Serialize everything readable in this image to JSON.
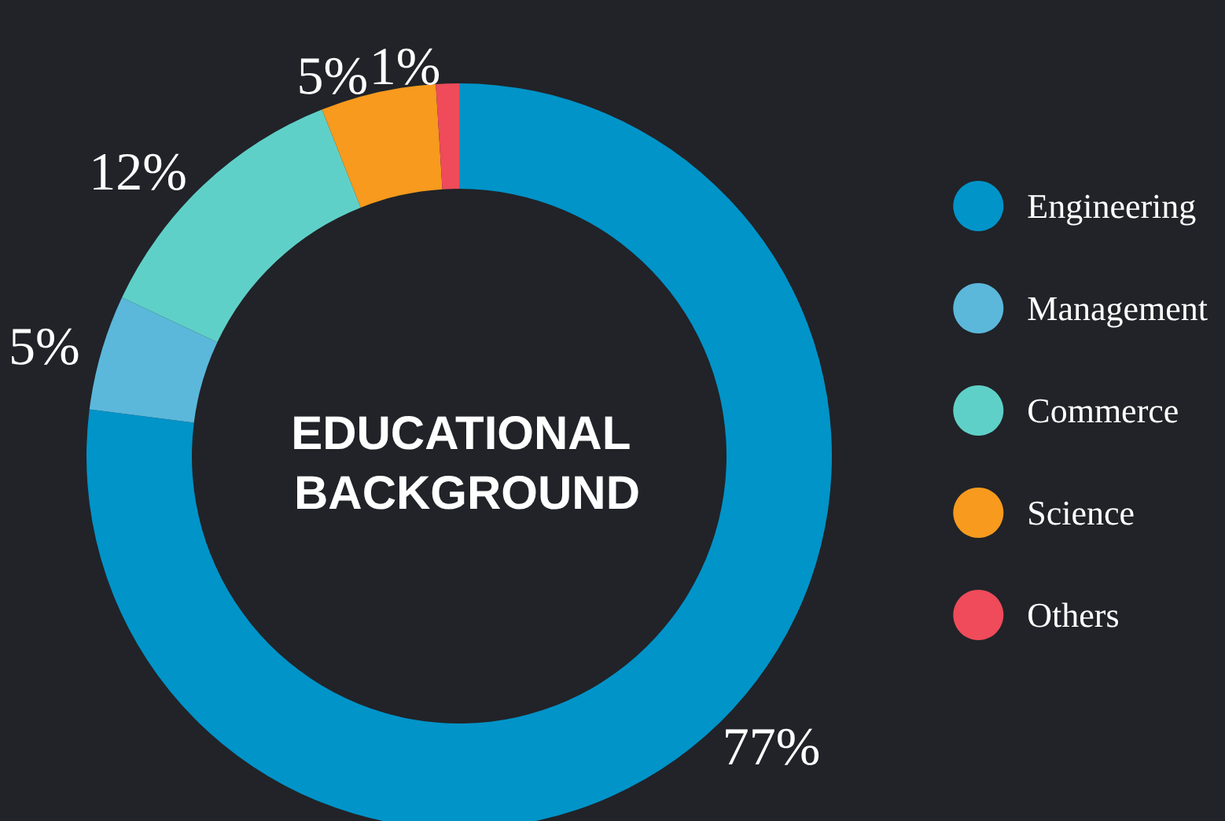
{
  "chart_data": {
    "type": "donut",
    "title": "EDUCATIONAL BACKGROUND",
    "categories": [
      "Engineering",
      "Management",
      "Commerce",
      "Science",
      "Others"
    ],
    "values": [
      77,
      5,
      12,
      5,
      1
    ],
    "colors": [
      "#0094c9",
      "#5bb8db",
      "#5fd0c8",
      "#f79a1e",
      "#ef4b5a"
    ],
    "value_labels": [
      "77%",
      "5%",
      "12%",
      "5%",
      "1%"
    ],
    "legend": "right"
  }
}
